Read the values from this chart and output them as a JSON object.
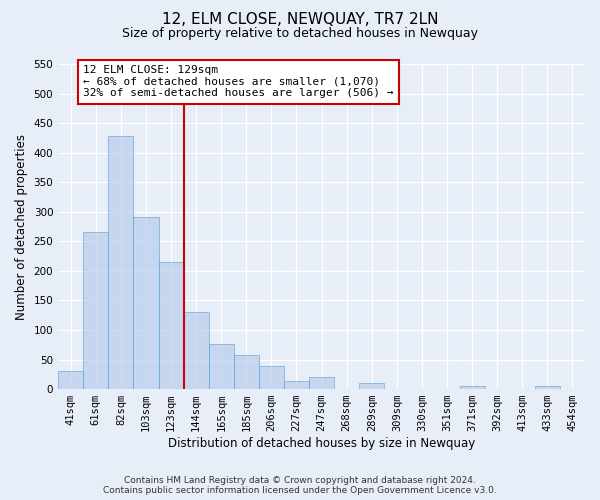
{
  "title": "12, ELM CLOSE, NEWQUAY, TR7 2LN",
  "subtitle": "Size of property relative to detached houses in Newquay",
  "xlabel": "Distribution of detached houses by size in Newquay",
  "ylabel": "Number of detached properties",
  "categories": [
    "41sqm",
    "61sqm",
    "82sqm",
    "103sqm",
    "123sqm",
    "144sqm",
    "165sqm",
    "185sqm",
    "206sqm",
    "227sqm",
    "247sqm",
    "268sqm",
    "289sqm",
    "309sqm",
    "330sqm",
    "351sqm",
    "371sqm",
    "392sqm",
    "413sqm",
    "433sqm",
    "454sqm"
  ],
  "values": [
    30,
    265,
    428,
    291,
    215,
    130,
    76,
    58,
    39,
    14,
    20,
    0,
    10,
    0,
    0,
    0,
    5,
    0,
    0,
    5,
    0
  ],
  "bar_color": "#aec6e8",
  "bar_edge_color": "#5a9fd4",
  "bar_alpha": 0.6,
  "vline_color": "#cc0000",
  "annotation_text": "12 ELM CLOSE: 129sqm\n← 68% of detached houses are smaller (1,070)\n32% of semi-detached houses are larger (506) →",
  "annotation_box_facecolor": "#ffffff",
  "annotation_box_edgecolor": "#cc0000",
  "ylim": [
    0,
    550
  ],
  "yticks": [
    0,
    50,
    100,
    150,
    200,
    250,
    300,
    350,
    400,
    450,
    500,
    550
  ],
  "footer_line1": "Contains HM Land Registry data © Crown copyright and database right 2024.",
  "footer_line2": "Contains public sector information licensed under the Open Government Licence v3.0.",
  "bg_color": "#e8eef8",
  "plot_bg_color": "#e8eef8",
  "grid_color": "#ffffff",
  "title_fontsize": 11,
  "subtitle_fontsize": 9,
  "axis_label_fontsize": 8.5,
  "tick_fontsize": 7.5,
  "footer_fontsize": 6.5
}
